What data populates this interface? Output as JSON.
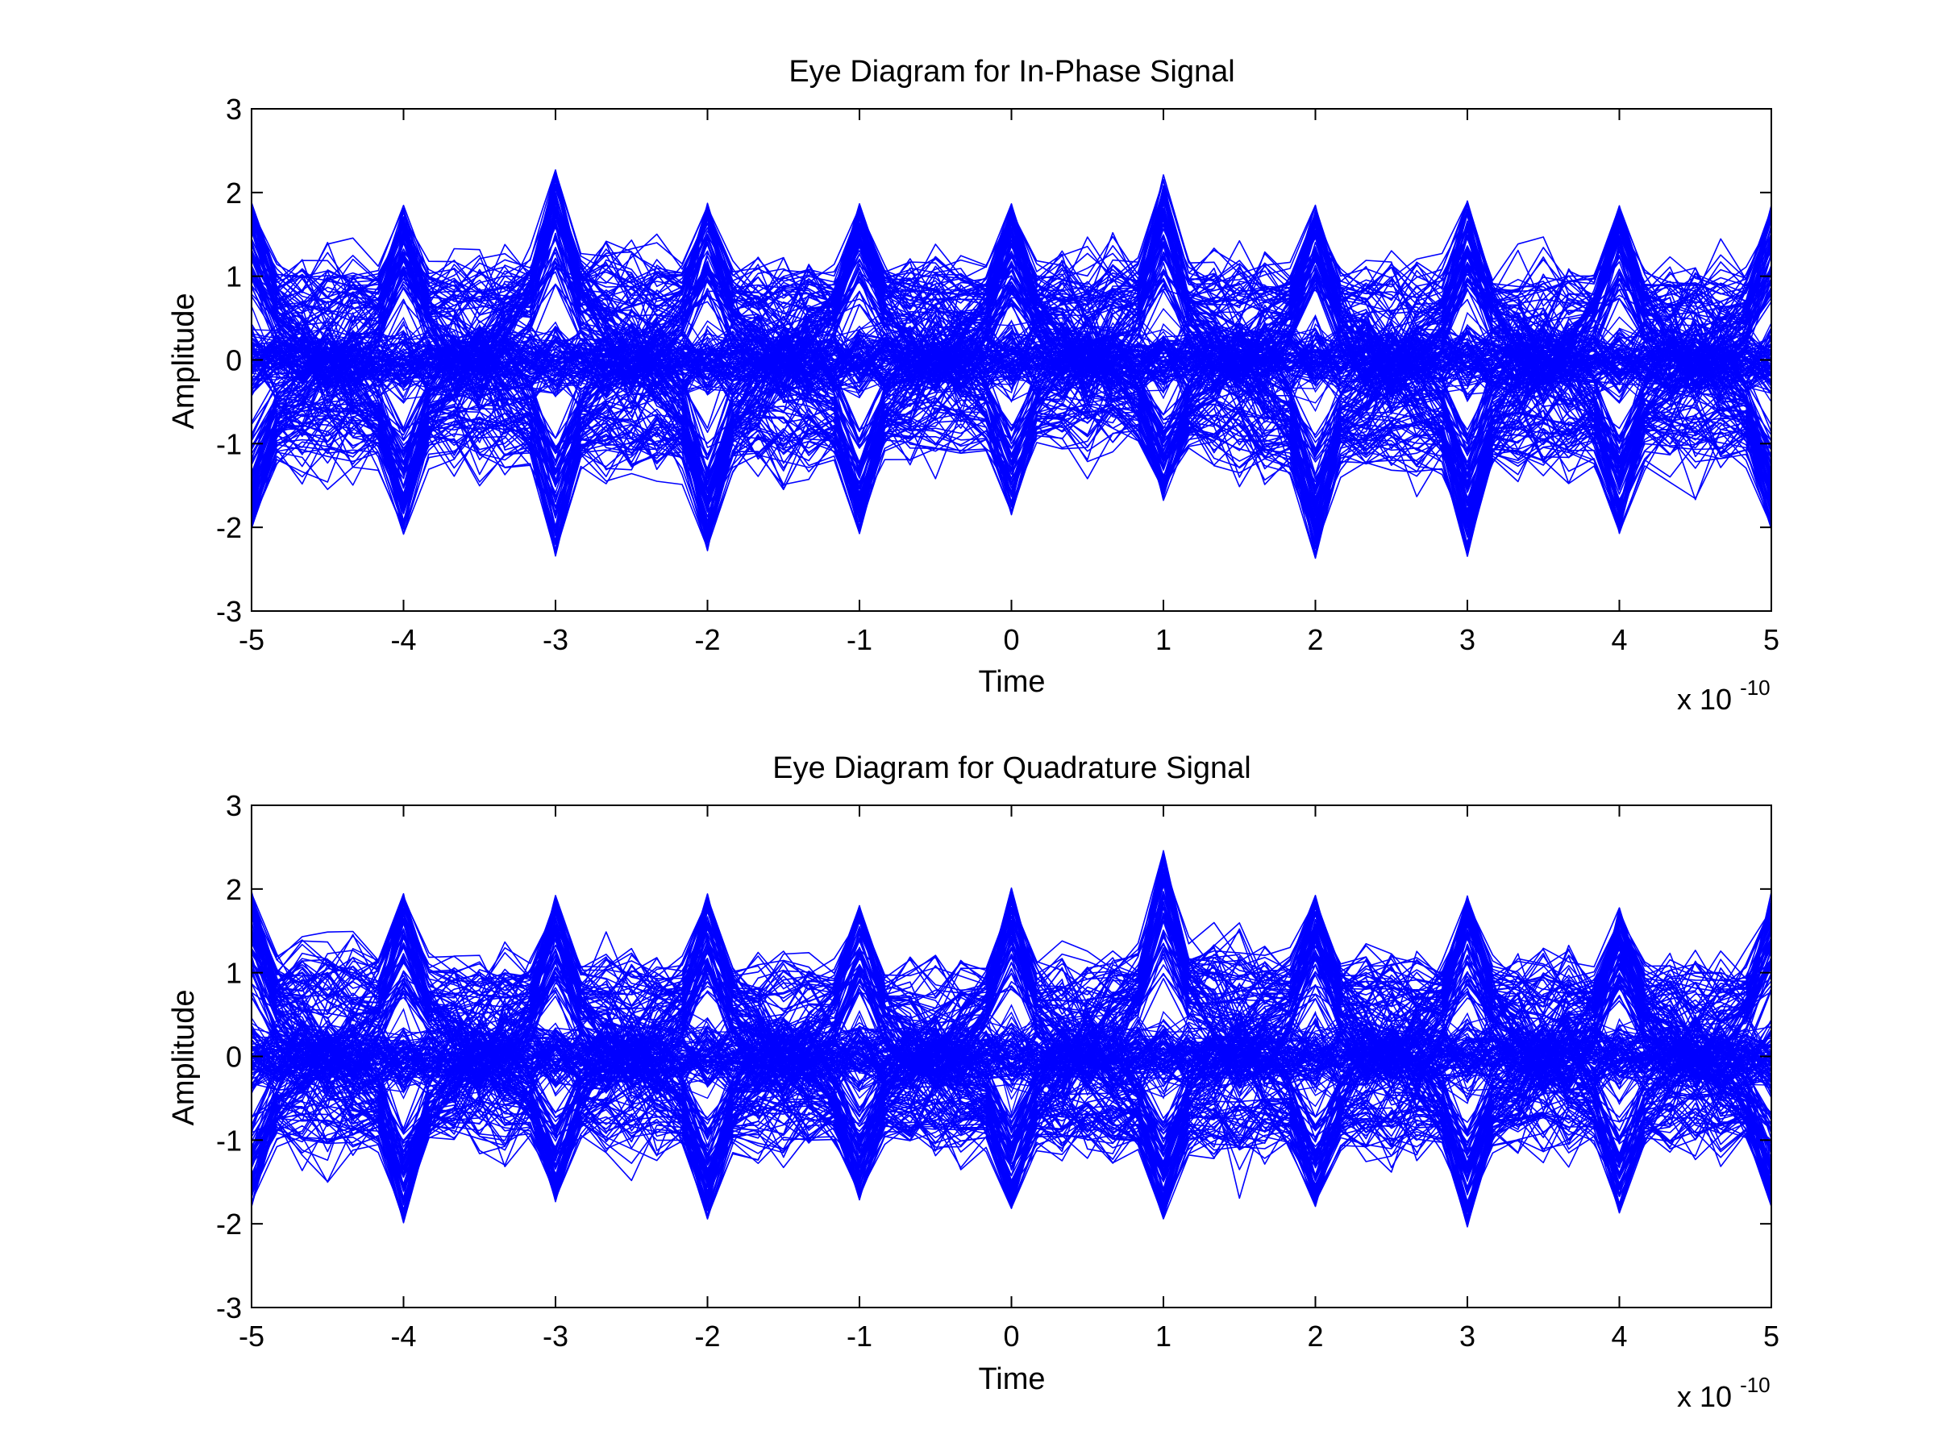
{
  "figure": {
    "background": "#ffffff",
    "line_color": "#0000ff",
    "axis_color": "#000000"
  },
  "chart_data": [
    {
      "type": "line",
      "title": "Eye Diagram for In-Phase Signal",
      "xlabel": "Time",
      "ylabel": "Amplitude",
      "x_exponent_label": "x 10",
      "x_exponent_power": "-10",
      "xlim": [
        -5e-10,
        5e-10
      ],
      "ylim": [
        -3,
        3
      ],
      "xticks": [
        -5,
        -4,
        -3,
        -2,
        -1,
        0,
        1,
        2,
        3,
        4,
        5
      ],
      "xtick_labels": [
        "-5",
        "-4",
        "-3",
        "-2",
        "-1",
        "0",
        "1",
        "2",
        "3",
        "4",
        "5"
      ],
      "yticks": [
        -3,
        -2,
        -1,
        0,
        1,
        2,
        3
      ],
      "ytick_labels": [
        "-3",
        "-2",
        "-1",
        "0",
        "1",
        "2",
        "3"
      ],
      "grid": false,
      "legend": "none",
      "symbol_period_x": 1e-10,
      "symbol_centers_x": [
        -5e-10,
        -4e-10,
        -3e-10,
        -2e-10,
        -1e-10,
        0,
        1e-10,
        2e-10,
        3e-10,
        4e-10,
        5e-10
      ],
      "peak_max_values": [
        1.9,
        1.85,
        2.28,
        1.88,
        1.87,
        1.87,
        2.22,
        1.85,
        1.93,
        1.85,
        1.85
      ],
      "peak_min_values": [
        -2.05,
        -2.1,
        -2.35,
        -2.28,
        -2.08,
        -1.85,
        -1.72,
        -2.38,
        -2.35,
        -2.08,
        -2.05
      ],
      "eye_crossing_envelope": [
        -0.9,
        0.9
      ]
    },
    {
      "type": "line",
      "title": "Eye Diagram for Quadrature Signal",
      "xlabel": "Time",
      "ylabel": "Amplitude",
      "x_exponent_label": "x 10",
      "x_exponent_power": "-10",
      "xlim": [
        -5e-10,
        5e-10
      ],
      "ylim": [
        -3,
        3
      ],
      "xticks": [
        -5,
        -4,
        -3,
        -2,
        -1,
        0,
        1,
        2,
        3,
        4,
        5
      ],
      "xtick_labels": [
        "-5",
        "-4",
        "-3",
        "-2",
        "-1",
        "0",
        "1",
        "2",
        "3",
        "4",
        "5"
      ],
      "yticks": [
        -3,
        -2,
        -1,
        0,
        1,
        2,
        3
      ],
      "ytick_labels": [
        "-3",
        "-2",
        "-1",
        "0",
        "1",
        "2",
        "3"
      ],
      "grid": false,
      "legend": "none",
      "symbol_period_x": 1e-10,
      "symbol_centers_x": [
        -5e-10,
        -4e-10,
        -3e-10,
        -2e-10,
        -1e-10,
        0,
        1e-10,
        2e-10,
        3e-10,
        4e-10,
        5e-10
      ],
      "peak_max_values": [
        2.0,
        1.95,
        1.93,
        1.98,
        1.83,
        2.02,
        2.47,
        1.95,
        1.93,
        1.78,
        2.0
      ],
      "peak_min_values": [
        -1.8,
        -2.0,
        -1.75,
        -1.95,
        -1.72,
        -1.85,
        -1.95,
        -1.8,
        -2.05,
        -1.88,
        -1.8
      ],
      "eye_crossing_envelope": [
        -0.9,
        0.9
      ]
    }
  ]
}
